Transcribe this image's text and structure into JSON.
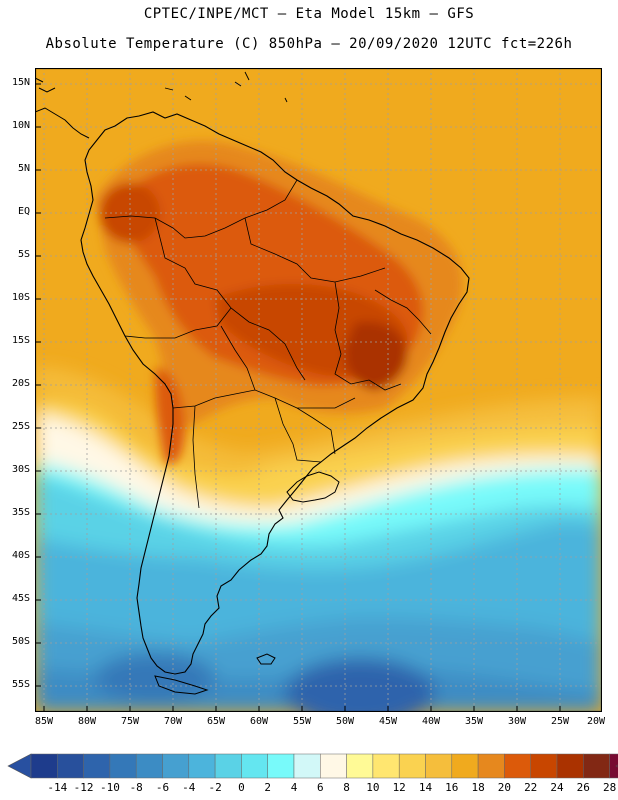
{
  "title_line1": "CPTEC/INPE/MCT –  Eta Model 15km – GFS",
  "title_line2": "Absolute Temperature (C) 850hPa – 20/09/2020 12UTC fct=226h",
  "lat_labels": [
    "15N",
    "10N",
    "5N",
    "EQ",
    "5S",
    "10S",
    "15S",
    "20S",
    "25S",
    "30S",
    "35S",
    "40S",
    "45S",
    "50S",
    "55S"
  ],
  "lon_labels": [
    "85W",
    "80W",
    "75W",
    "70W",
    "65W",
    "60W",
    "55W",
    "50W",
    "45W",
    "40W",
    "35W",
    "30W",
    "25W",
    "20W"
  ],
  "colorbar": {
    "labels": [
      "-14",
      "-12",
      "-10",
      "-8",
      "-6",
      "-4",
      "-2",
      "0",
      "2",
      "4",
      "6",
      "8",
      "10",
      "12",
      "14",
      "16",
      "18",
      "20",
      "22",
      "24",
      "26",
      "28"
    ],
    "colors": [
      "#1e3c8c",
      "#28509c",
      "#2e64ac",
      "#3478b8",
      "#3c8cc4",
      "#46a0d0",
      "#4cb4dc",
      "#5ad2e6",
      "#64e6f0",
      "#78fafa",
      "#d2f8f8",
      "#fff8e6",
      "#fffa96",
      "#ffe670",
      "#fad250",
      "#f5be3c",
      "#f0aa1e",
      "#e6881e",
      "#dc5a0a",
      "#c84600",
      "#aa3200",
      "#822814",
      "#780a32"
    ],
    "under_color": "#2850a0",
    "over_color": "#780a32"
  }
}
